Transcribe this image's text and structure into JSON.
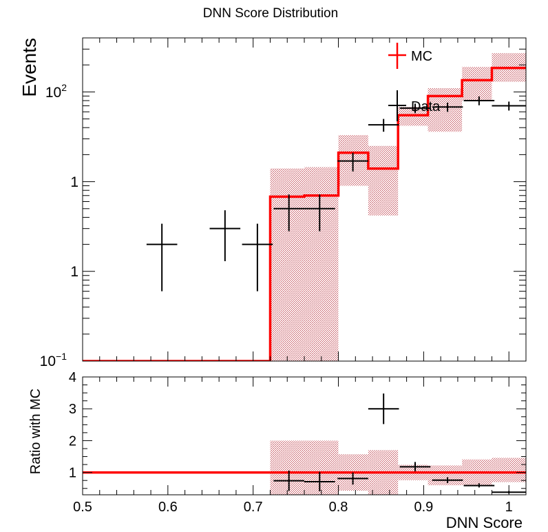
{
  "colors": {
    "mc": "#ff0000",
    "band": "#cc2a36",
    "data": "#000000",
    "frame": "#000000"
  },
  "chart_data": [
    {
      "type": "line",
      "panel": "main",
      "title": "DNN Score Distribution",
      "ylabel": "Events",
      "xlabel": "",
      "log_y": true,
      "xlim": [
        0.5,
        1.02
      ],
      "ylim": [
        0.1,
        400
      ],
      "y_tick_labels": [
        "10",
        "1",
        "10"
      ],
      "legend": {
        "position": "top-right",
        "entries": [
          "MC",
          "Data"
        ]
      },
      "series": [
        {
          "name": "MC",
          "style": "step",
          "bins": [
            {
              "x_low": 0.5,
              "x_high": 0.72,
              "y": 0.1,
              "band_low": null,
              "band_high": null
            },
            {
              "x_low": 0.72,
              "x_high": 0.76,
              "y": 6.8,
              "band_low": 0.1,
              "band_high": 14
            },
            {
              "x_low": 0.76,
              "x_high": 0.8,
              "y": 7.0,
              "band_low": 0.1,
              "band_high": 14.5
            },
            {
              "x_low": 0.8,
              "x_high": 0.835,
              "y": 21,
              "band_low": 9,
              "band_high": 33
            },
            {
              "x_low": 0.835,
              "x_high": 0.87,
              "y": 14,
              "band_low": 4.2,
              "band_high": 25
            },
            {
              "x_low": 0.87,
              "x_high": 0.905,
              "y": 55,
              "band_low": 42,
              "band_high": 68
            },
            {
              "x_low": 0.905,
              "x_high": 0.945,
              "y": 90,
              "band_low": 36,
              "band_high": 110
            },
            {
              "x_low": 0.945,
              "x_high": 0.98,
              "y": 135,
              "band_low": 80,
              "band_high": 190
            },
            {
              "x_low": 0.98,
              "x_high": 1.02,
              "y": 185,
              "band_low": 130,
              "band_high": 270
            }
          ]
        },
        {
          "name": "Data",
          "style": "errorbar",
          "points": [
            {
              "x": 0.593,
              "x_err": 0.018,
              "y": 2,
              "y_low": 0.6,
              "y_high": 3.4
            },
            {
              "x": 0.667,
              "x_err": 0.018,
              "y": 3,
              "y_low": 1.3,
              "y_high": 4.8
            },
            {
              "x": 0.705,
              "x_err": 0.018,
              "y": 2,
              "y_low": 0.6,
              "y_high": 3.4
            },
            {
              "x": 0.742,
              "x_err": 0.018,
              "y": 5,
              "y_low": 2.8,
              "y_high": 7.2
            },
            {
              "x": 0.778,
              "x_err": 0.018,
              "y": 5,
              "y_low": 2.8,
              "y_high": 7.2
            },
            {
              "x": 0.817,
              "x_err": 0.018,
              "y": 17,
              "y_low": 13,
              "y_high": 21
            },
            {
              "x": 0.853,
              "x_err": 0.018,
              "y": 43,
              "y_low": 36,
              "y_high": 50
            },
            {
              "x": 0.89,
              "x_err": 0.018,
              "y": 66,
              "y_low": 58,
              "y_high": 74
            },
            {
              "x": 0.928,
              "x_err": 0.018,
              "y": 68,
              "y_low": 60,
              "y_high": 76
            },
            {
              "x": 0.965,
              "x_err": 0.018,
              "y": 80,
              "y_low": 71,
              "y_high": 89
            },
            {
              "x": 1.0,
              "x_err": 0.02,
              "y": 70,
              "y_low": 62,
              "y_high": 78
            }
          ]
        }
      ]
    },
    {
      "type": "line",
      "panel": "ratio",
      "title": "",
      "ylabel": "Ratio with MC",
      "xlabel": "DNN Score",
      "xlim": [
        0.5,
        1.02
      ],
      "ylim": [
        0.3,
        4.0
      ],
      "x_ticks": [
        "0.5",
        "0.6",
        "0.7",
        "0.8",
        "0.9",
        "1"
      ],
      "y_ticks": [
        "1",
        "2",
        "3",
        "4"
      ],
      "series": [
        {
          "name": "",
          "style": "hline",
          "y": 1.0
        },
        {
          "name": "",
          "style": "band",
          "bins": [
            {
              "x_low": 0.72,
              "x_high": 0.8,
              "band_low": 0.3,
              "band_high": 2.0
            },
            {
              "x_low": 0.8,
              "x_high": 0.835,
              "band_low": 0.43,
              "band_high": 1.57
            },
            {
              "x_low": 0.835,
              "x_high": 0.87,
              "band_low": 0.3,
              "band_high": 1.7
            },
            {
              "x_low": 0.87,
              "x_high": 0.905,
              "band_low": 0.76,
              "band_high": 1.24
            },
            {
              "x_low": 0.905,
              "x_high": 0.945,
              "band_low": 0.6,
              "band_high": 1.22
            },
            {
              "x_low": 0.945,
              "x_high": 0.98,
              "band_low": 0.6,
              "band_high": 1.41
            },
            {
              "x_low": 0.98,
              "x_high": 1.02,
              "band_low": 0.7,
              "band_high": 1.46
            }
          ]
        },
        {
          "name": "",
          "style": "errorbar",
          "points": [
            {
              "x": 0.742,
              "x_err": 0.018,
              "y": 0.74,
              "y_low": 0.42,
              "y_high": 1.06
            },
            {
              "x": 0.778,
              "x_err": 0.018,
              "y": 0.71,
              "y_low": 0.41,
              "y_high": 1.02
            },
            {
              "x": 0.817,
              "x_err": 0.018,
              "y": 0.81,
              "y_low": 0.62,
              "y_high": 1.0
            },
            {
              "x": 0.853,
              "x_err": 0.018,
              "y": 3.0,
              "y_low": 2.52,
              "y_high": 3.48
            },
            {
              "x": 0.89,
              "x_err": 0.018,
              "y": 1.18,
              "y_low": 1.04,
              "y_high": 1.33
            },
            {
              "x": 0.928,
              "x_err": 0.018,
              "y": 0.76,
              "y_low": 0.67,
              "y_high": 0.85
            },
            {
              "x": 0.965,
              "x_err": 0.018,
              "y": 0.59,
              "y_low": 0.53,
              "y_high": 0.66
            },
            {
              "x": 1.0,
              "x_err": 0.02,
              "y": 0.38,
              "y_low": 0.34,
              "y_high": 0.42
            }
          ]
        }
      ]
    }
  ]
}
